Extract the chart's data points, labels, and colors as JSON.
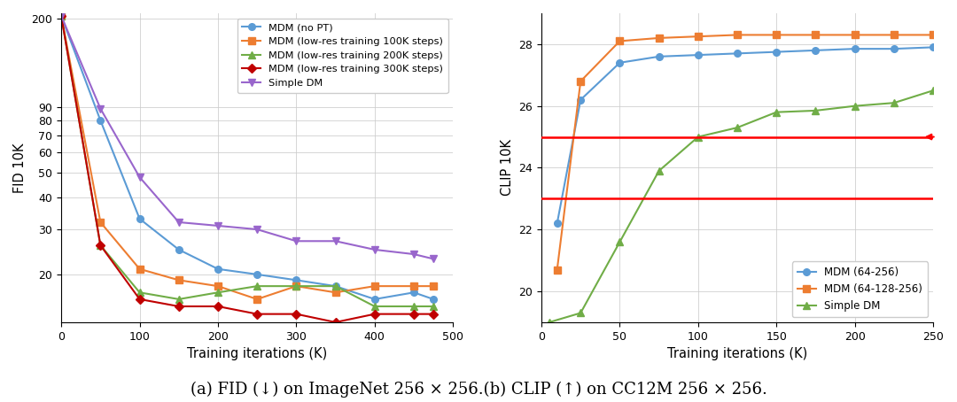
{
  "left": {
    "xlabel": "Training iterations (K)",
    "ylabel": "FID 10K",
    "xlim": [
      0,
      500
    ],
    "yticks_display": [
      200,
      90,
      80,
      70,
      60,
      50,
      40,
      30,
      20
    ],
    "series": [
      {
        "label": "MDM (no PT)",
        "color": "#5b9bd5",
        "marker": "o",
        "x": [
          0,
          50,
          100,
          150,
          200,
          250,
          300,
          350,
          400,
          450,
          475
        ],
        "y": [
          205,
          80,
          33,
          25,
          21,
          20,
          19,
          18,
          16,
          17,
          16
        ]
      },
      {
        "label": "MDM (low-res training 100K steps)",
        "color": "#ed7d31",
        "marker": "s",
        "x": [
          0,
          50,
          100,
          150,
          200,
          250,
          300,
          350,
          400,
          450,
          475
        ],
        "y": [
          205,
          32,
          21,
          19,
          18,
          16,
          18,
          17,
          18,
          18,
          18
        ]
      },
      {
        "label": "MDM (low-res training 200K steps)",
        "color": "#70ad47",
        "marker": "^",
        "x": [
          0,
          50,
          100,
          150,
          200,
          250,
          300,
          350,
          400,
          450,
          475
        ],
        "y": [
          205,
          26,
          17,
          16,
          17,
          18,
          18,
          18,
          15,
          15,
          15
        ]
      },
      {
        "label": "MDM (low-res training 300K steps)",
        "color": "#c00000",
        "marker": "D",
        "x": [
          0,
          50,
          100,
          150,
          200,
          250,
          300,
          350,
          400,
          450,
          475
        ],
        "y": [
          205,
          26,
          16,
          15,
          15,
          14,
          14,
          13,
          14,
          14,
          14
        ]
      },
      {
        "label": "Simple DM",
        "color": "#9966cc",
        "marker": "v",
        "x": [
          0,
          50,
          100,
          150,
          200,
          250,
          300,
          350,
          400,
          450,
          475
        ],
        "y": [
          205,
          89,
          48,
          32,
          31,
          30,
          27,
          27,
          25,
          24,
          23
        ]
      }
    ]
  },
  "right": {
    "xlabel": "Training iterations (K)",
    "ylabel": "CLIP 10K",
    "xlim": [
      0,
      250
    ],
    "ylim": [
      19,
      29
    ],
    "yticks": [
      20,
      22,
      24,
      26,
      28
    ],
    "hlines": [
      23.0,
      25.0
    ],
    "hline_color": "#ff0000",
    "series": [
      {
        "label": "MDM (64-256)",
        "color": "#5b9bd5",
        "marker": "o",
        "x": [
          10,
          25,
          50,
          75,
          100,
          125,
          150,
          175,
          200,
          225,
          250
        ],
        "y": [
          22.2,
          26.2,
          27.4,
          27.6,
          27.65,
          27.7,
          27.75,
          27.8,
          27.85,
          27.85,
          27.9
        ]
      },
      {
        "label": "MDM (64-128-256)",
        "color": "#ed7d31",
        "marker": "s",
        "x": [
          10,
          25,
          50,
          75,
          100,
          125,
          150,
          175,
          200,
          225,
          250
        ],
        "y": [
          20.7,
          26.8,
          28.1,
          28.2,
          28.25,
          28.3,
          28.3,
          28.3,
          28.3,
          28.3,
          28.3
        ]
      },
      {
        "label": "Simple DM",
        "color": "#70ad47",
        "marker": "^",
        "x": [
          5,
          25,
          50,
          75,
          100,
          125,
          150,
          175,
          200,
          225,
          250
        ],
        "y": [
          19.0,
          19.3,
          21.6,
          23.9,
          25.0,
          25.3,
          25.8,
          25.85,
          26.0,
          26.1,
          26.5
        ]
      }
    ]
  },
  "caption": "(a) FID (↓) on ImageNet 256 × 256.(b) CLIP (↑) on CC12M 256 × 256.",
  "background_color": "#ffffff",
  "grid_color": "#cccccc"
}
